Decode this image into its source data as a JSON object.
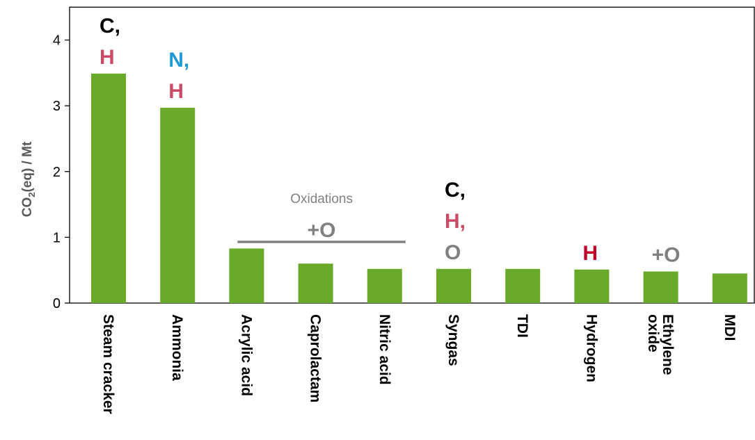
{
  "chart_data": {
    "type": "bar",
    "categories": [
      "Steam cracker",
      "Ammonia",
      "Acrylic acid",
      "Caprolactam",
      "Nitric acid",
      "Syngas",
      "TDI",
      "Hydrogen",
      "Ethylene oxide",
      "MDI"
    ],
    "category_lines": [
      [
        "Steam cracker"
      ],
      [
        "Ammonia"
      ],
      [
        "Acrylic acid"
      ],
      [
        "Caprolactam"
      ],
      [
        "Nitric acid"
      ],
      [
        "Syngas"
      ],
      [
        "TDI"
      ],
      [
        "Hydrogen"
      ],
      [
        "Ethylene",
        "oxide"
      ],
      [
        "MDI"
      ]
    ],
    "values": [
      3.49,
      2.97,
      0.83,
      0.6,
      0.52,
      0.52,
      0.52,
      0.51,
      0.48,
      0.45
    ],
    "ylabel_main": "CO",
    "ylabel_sub": "2",
    "ylabel_rest": "(eq) / Mt",
    "ylim": [
      0,
      4.5
    ],
    "yticks": [
      0,
      1,
      2,
      3,
      4
    ],
    "grid": false,
    "bar_color": "#6aaa2a",
    "annotations": [
      {
        "category": 0,
        "lines": [
          {
            "text": "C,",
            "color": "#000000"
          },
          {
            "text": "H",
            "color": "#cc4a66"
          }
        ]
      },
      {
        "category": 1,
        "lines": [
          {
            "text": "N,",
            "color": "#1f9ad6"
          },
          {
            "text": "H",
            "color": "#cc4a66"
          }
        ]
      },
      {
        "category": 5,
        "lines": [
          {
            "text": "C,",
            "color": "#000000"
          },
          {
            "text": "H,",
            "color": "#cc4a66"
          },
          {
            "text": "O",
            "color": "#808080"
          }
        ]
      },
      {
        "category": 7,
        "lines": [
          {
            "text": "H",
            "color": "#c0002a"
          }
        ]
      },
      {
        "category": 8,
        "lines": [
          {
            "text": "+O",
            "color": "#808080"
          }
        ]
      }
    ],
    "group": {
      "label": "Oxidations",
      "symbol": "+O",
      "from": 2,
      "to": 4
    }
  }
}
